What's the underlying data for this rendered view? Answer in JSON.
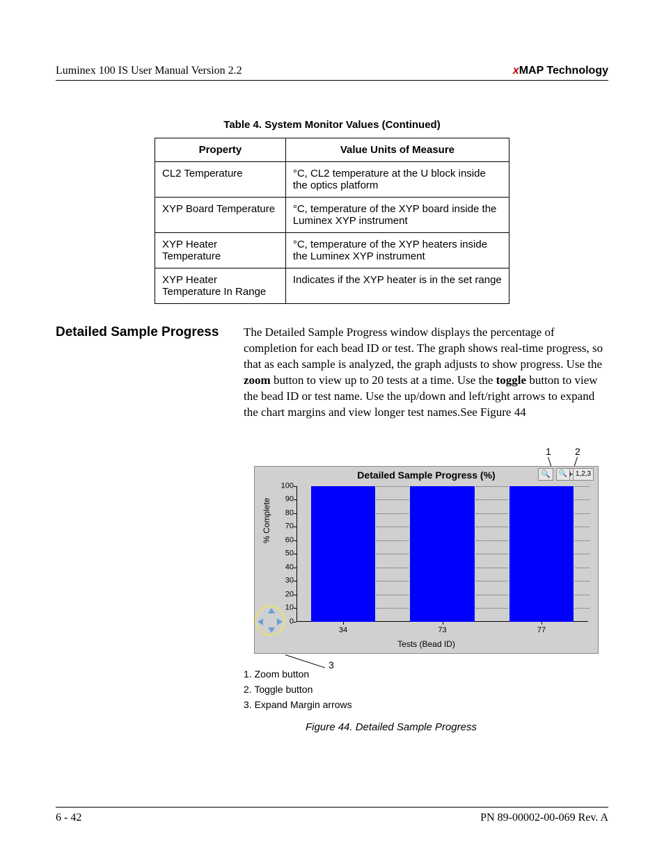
{
  "header": {
    "left": "Luminex 100 IS User Manual Version 2.2",
    "right_prefix": "x",
    "right_main": "MAP Technology"
  },
  "table": {
    "caption": "Table 4.  System Monitor Values (Continued)",
    "col1": "Property",
    "col2": "Value Units of Measure",
    "rows": [
      {
        "p": "CL2 Temperature",
        "v": "°C, CL2 temperature at the U block inside the optics platform"
      },
      {
        "p": "XYP Board Temperature",
        "v": "°C, temperature of the XYP board inside the Luminex XYP instrument"
      },
      {
        "p": "XYP Heater Temperature",
        "v": "°C, temperature of the XYP heaters inside the Luminex XYP instrument"
      },
      {
        "p": "XYP Heater Temperature In Range",
        "v": "Indicates if the XYP heater is in the set range"
      }
    ]
  },
  "section": {
    "heading": "Detailed Sample Progress",
    "p1a": "The Detailed Sample Progress window displays the percentage of completion for each bead ID or test. The graph shows real-time progress, so that as each sample is analyzed, the graph adjusts to show progress. Use the ",
    "zoom": "zoom",
    "p1b": " button to view up to 20 tests at a time. Use the ",
    "toggle": "toggle",
    "p1c": " button to view the bead ID or test name. Use the up/down and left/right arrows to expand the chart margins and view longer test names.See Figure 44"
  },
  "chart": {
    "title": "Detailed Sample Progress (%)",
    "zoom_icon": "🔍",
    "toggle_label": "1,2,3",
    "plus": "+",
    "ylabel": "% Complete",
    "xlabel": "Tests (Bead ID)",
    "yticks": [
      "0",
      "10",
      "20",
      "30",
      "40",
      "50",
      "60",
      "70",
      "80",
      "90",
      "100"
    ],
    "bar_color": "#0000ff",
    "background_color": "#d0d0d0",
    "grid_color": "#555555",
    "bars": [
      {
        "label": "34",
        "center_pct": 16,
        "width_pct": 22,
        "value": 100
      },
      {
        "label": "73",
        "center_pct": 50,
        "width_pct": 22,
        "value": 100
      },
      {
        "label": "77",
        "center_pct": 84,
        "width_pct": 22,
        "value": 100
      }
    ],
    "gap_segments": [
      {
        "left_pct": 27.5,
        "width_pct": 11
      },
      {
        "left_pct": 61.5,
        "width_pct": 11
      },
      {
        "left_pct": 95.5,
        "width_pct": 5
      }
    ],
    "callouts": {
      "c1": "1",
      "c2": "2",
      "c3": "3"
    }
  },
  "legend": {
    "l1": "1. Zoom button",
    "l2": "2. Toggle button",
    "l3": "3. Expand Margin arrows"
  },
  "figure_caption": "Figure 44.  Detailed Sample Progress",
  "footer": {
    "left": "6 - 42",
    "right": "PN 89-00002-00-069 Rev. A"
  }
}
